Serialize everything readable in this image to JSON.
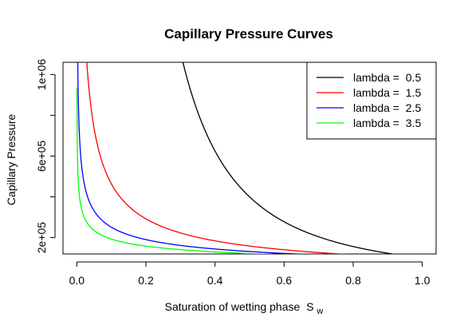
{
  "chart_data": {
    "type": "line",
    "title": "Capillary Pressure Curves",
    "xlabel": "Saturation of wetting phase",
    "xlabel_subscript_base": "S",
    "xlabel_subscript": "w",
    "ylabel": "Capillary Pressure",
    "xlim": [
      0,
      1
    ],
    "ylim": [
      100000,
      1000000
    ],
    "x_ticks": [
      0.0,
      0.2,
      0.4,
      0.6,
      0.8,
      1.0
    ],
    "x_tick_labels": [
      "0.0",
      "0.2",
      "0.4",
      "0.6",
      "0.8",
      "1.0"
    ],
    "y_ticks": [
      200000,
      400000,
      600000,
      800000,
      1000000
    ],
    "y_tick_labels": [
      "2e+05",
      "",
      "6e+05",
      "",
      "1e+06"
    ],
    "grid": false,
    "legend_position": "top-right",
    "entry_pressure": 100000,
    "series": [
      {
        "name": "lambda =  0.5",
        "lambda": 0.5,
        "color": "#000000"
      },
      {
        "name": "lambda =  1.5",
        "lambda": 1.5,
        "color": "#ff0000"
      },
      {
        "name": "lambda =  2.5",
        "lambda": 2.5,
        "color": "#0000ff"
      },
      {
        "name": "lambda =  3.5",
        "lambda": 3.5,
        "color": "#00ff00"
      }
    ]
  }
}
